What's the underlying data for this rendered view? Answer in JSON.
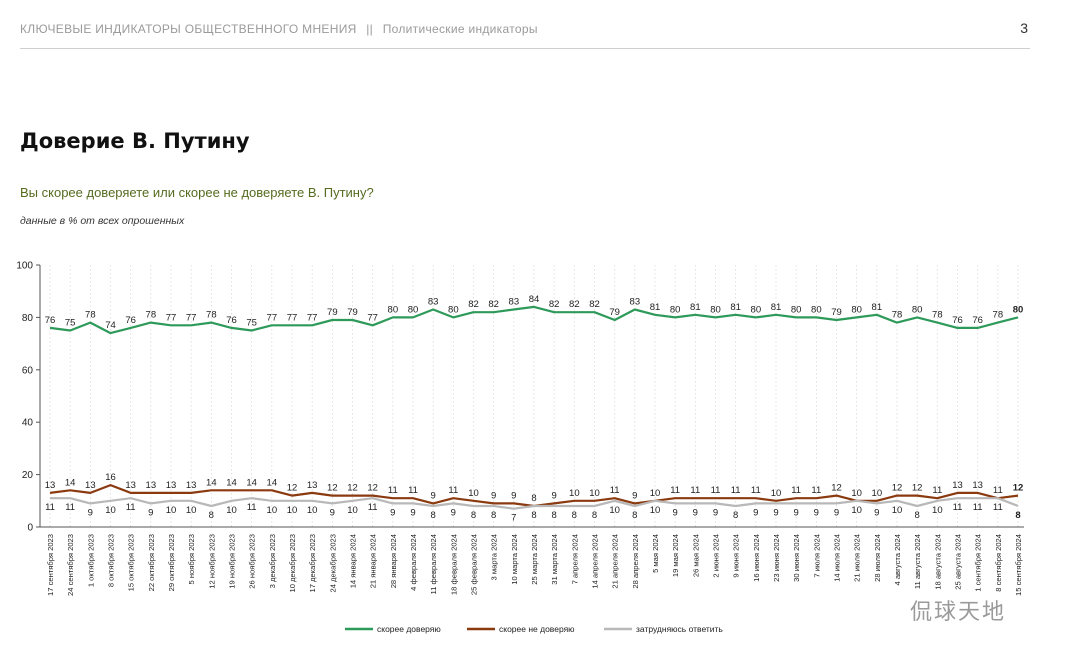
{
  "header": {
    "section_left": "КЛЮЧЕВЫЕ ИНДИКАТОРЫ ОБЩЕСТВЕННОГО МНЕНИЯ",
    "separator": "||",
    "section_right": "Политические индикаторы",
    "page_number": "3"
  },
  "title": "Доверие В. Путину",
  "question": "Вы скорее доверяете или скорее не доверяете В. Путину?",
  "note": "данные в % от всех опрошенных",
  "watermark": "侃球天地",
  "colors": {
    "trust": "#2e9a5a",
    "distrust": "#8b3a10",
    "hard": "#b8b8b8",
    "question": "#556b1f"
  },
  "chart_data": {
    "type": "line",
    "ylim": [
      0,
      100
    ],
    "yticks": [
      0,
      20,
      40,
      60,
      80,
      100
    ],
    "grid": "vertical dotted",
    "legend_position": "bottom",
    "x": [
      "17 сентября 2023",
      "24 сентября 2023",
      "1 октября 2023",
      "8 октября 2023",
      "15 октября 2023",
      "22 октября 2023",
      "29 октября 2023",
      "5 ноября 2023",
      "12 ноября 2023",
      "19 ноября 2023",
      "26 ноября 2023",
      "3 декабря 2023",
      "10 декабря 2023",
      "17 декабря 2023",
      "24 декабря 2023",
      "14 января 2024",
      "21 января 2024",
      "28 января 2024",
      "4 февраля 2024",
      "11 февраля 2024",
      "18 февраля 2024",
      "25 февраля 2024",
      "3 марта 2024",
      "10 марта 2024",
      "25 марта 2024",
      "31 марта 2024",
      "7 апреля 2024",
      "14 апреля 2024",
      "21 апреля 2024",
      "28 апреля 2024",
      "5 мая 2024",
      "19 мая 2024",
      "26 мая 2024",
      "2 июня 2024",
      "9 июня 2024",
      "16 июня 2024",
      "23 июня 2024",
      "30 июня 2024",
      "7 июля 2024",
      "14 июля 2024",
      "21 июля 2024",
      "28 июля 2024",
      "4 августа 2024",
      "11 августа 2024",
      "18 августа 2024",
      "25 августа 2024",
      "1 сентября 2024",
      "8 сентября 2024",
      "15 сентября 2024"
    ],
    "series": [
      {
        "name": "скорее доверяю",
        "values": [
          76,
          75,
          78,
          74,
          76,
          78,
          77,
          77,
          78,
          76,
          75,
          77,
          77,
          77,
          79,
          79,
          77,
          80,
          80,
          83,
          80,
          82,
          82,
          83,
          84,
          82,
          82,
          82,
          79,
          83,
          81,
          80,
          81,
          80,
          81,
          80,
          81,
          80,
          80,
          79,
          80,
          81,
          78,
          80,
          78,
          76,
          76,
          78,
          80
        ]
      },
      {
        "name": "скорее не доверяю",
        "values": [
          13,
          14,
          13,
          16,
          13,
          13,
          13,
          13,
          14,
          14,
          14,
          14,
          12,
          13,
          12,
          12,
          12,
          11,
          11,
          9,
          11,
          10,
          9,
          9,
          8,
          9,
          10,
          10,
          11,
          9,
          10,
          11,
          11,
          11,
          11,
          11,
          10,
          11,
          11,
          12,
          10,
          10,
          12,
          12,
          11,
          13,
          13,
          11,
          12
        ]
      },
      {
        "name": "затрудняюсь ответить",
        "values": [
          11,
          11,
          9,
          10,
          11,
          9,
          10,
          10,
          8,
          10,
          11,
          10,
          10,
          10,
          9,
          10,
          11,
          9,
          9,
          8,
          9,
          8,
          8,
          7,
          8,
          8,
          8,
          8,
          10,
          8,
          10,
          9,
          9,
          9,
          8,
          9,
          9,
          9,
          9,
          9,
          10,
          9,
          10,
          8,
          10,
          11,
          11,
          11,
          8
        ]
      }
    ]
  }
}
